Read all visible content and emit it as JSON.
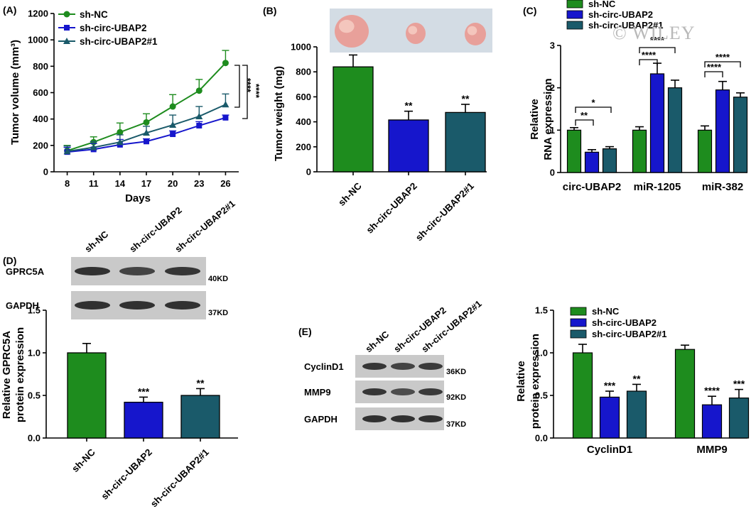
{
  "watermark": "© WILEY",
  "colors": {
    "sh_nc": "#1e8c1e",
    "sh_circ": "#1616cc",
    "sh_circ1": "#1a5a6a",
    "axis": "#000000"
  },
  "chart_data": [
    {
      "panel": "(A)",
      "type": "line",
      "xlabel": "Days",
      "ylabel": "Tumor volume (mm³)",
      "x": [
        8,
        11,
        14,
        17,
        20,
        23,
        26
      ],
      "xlim": [
        6.5,
        27.5
      ],
      "ylim": [
        0,
        1200
      ],
      "yticks": [
        0,
        200,
        400,
        600,
        800,
        1000,
        1200
      ],
      "legend_position": "top-left",
      "series": [
        {
          "name": "sh-NC",
          "marker": "circle",
          "values": [
            160,
            225,
            300,
            375,
            495,
            615,
            825
          ],
          "errors": [
            40,
            40,
            70,
            65,
            90,
            85,
            95
          ]
        },
        {
          "name": "sh-circ-UBAP2",
          "marker": "square",
          "values": [
            150,
            170,
            205,
            230,
            285,
            350,
            410
          ],
          "errors": [
            35,
            45,
            40,
            20,
            25,
            30,
            20
          ]
        },
        {
          "name": "sh-circ-UBAP2#1",
          "marker": "triangle",
          "values": [
            155,
            185,
            225,
            295,
            355,
            420,
            510
          ],
          "errors": [
            40,
            45,
            55,
            50,
            75,
            75,
            80
          ]
        }
      ],
      "annotations": [
        "****",
        "****"
      ]
    },
    {
      "panel": "(B)",
      "type": "bar",
      "ylabel": "Tumor weight (mg)",
      "categories": [
        "sh-NC",
        "sh-circ-UBAP2",
        "sh-circ-UBAP2#1"
      ],
      "values": [
        840,
        415,
        475
      ],
      "errors": [
        95,
        70,
        65
      ],
      "significance": [
        "",
        "**",
        "**"
      ],
      "ylim": [
        0,
        1000
      ],
      "yticks": [
        0,
        200,
        400,
        600,
        800,
        1000
      ]
    },
    {
      "panel": "(C)",
      "type": "bar",
      "ylabel": "Relative RNA expression",
      "categories": [
        "circ-UBAP2",
        "miR-1205",
        "miR-382"
      ],
      "series": [
        {
          "name": "sh-NC",
          "values": [
            1.0,
            1.0,
            1.0
          ],
          "errors": [
            0.06,
            0.08,
            0.1
          ]
        },
        {
          "name": "sh-circ-UBAP2",
          "values": [
            0.48,
            2.33,
            1.95
          ],
          "errors": [
            0.06,
            0.25,
            0.2
          ]
        },
        {
          "name": "sh-circ-UBAP2#1",
          "values": [
            0.56,
            2.0,
            1.78
          ],
          "errors": [
            0.05,
            0.18,
            0.1
          ]
        }
      ],
      "ylim": [
        0,
        3
      ],
      "yticks": [
        0,
        1,
        2,
        3
      ],
      "legend_position": "top",
      "annotations": [
        "**",
        "*",
        "****",
        "****",
        "****",
        "****"
      ]
    },
    {
      "panel": "(D)",
      "type": "bar",
      "ylabel": "Relative GPRC5A protein expression",
      "categories": [
        "sh-NC",
        "sh-circ-UBAP2",
        "sh-circ-UBAP2#1"
      ],
      "values": [
        1.0,
        0.42,
        0.5
      ],
      "errors": [
        0.11,
        0.06,
        0.08
      ],
      "significance": [
        "",
        "***",
        "**"
      ],
      "ylim": [
        0,
        1.5
      ],
      "yticks": [
        "0.0",
        "0.5",
        "1.0",
        "1.5"
      ],
      "blot": {
        "lanes": [
          "sh-NC",
          "sh-circ-UBAP2",
          "sh-circ-UBAP2#1"
        ],
        "rows": [
          {
            "label": "GPRC5A",
            "size": "40KD",
            "intensity": [
              0.9,
              0.7,
              0.85
            ]
          },
          {
            "label": "GAPDH",
            "size": "37KD",
            "intensity": [
              0.9,
              0.9,
              0.9
            ]
          }
        ]
      }
    },
    {
      "panel": "(E)",
      "type": "bar",
      "ylabel": "Relative protein expression",
      "categories": [
        "CyclinD1",
        "MMP9"
      ],
      "series": [
        {
          "name": "sh-NC",
          "values": [
            1.0,
            1.04
          ],
          "errors": [
            0.1,
            0.05
          ],
          "significance": [
            "",
            ""
          ]
        },
        {
          "name": "sh-circ-UBAP2",
          "values": [
            0.48,
            0.39
          ],
          "errors": [
            0.07,
            0.1
          ],
          "significance": [
            "***",
            "****"
          ]
        },
        {
          "name": "sh-circ-UBAP2#1",
          "values": [
            0.55,
            0.47
          ],
          "errors": [
            0.08,
            0.1
          ],
          "significance": [
            "**",
            "***"
          ]
        }
      ],
      "ylim": [
        0,
        1.5
      ],
      "yticks": [
        "0.0",
        "0.5",
        "1.0",
        "1.5"
      ],
      "legend_position": "top-right",
      "blot": {
        "lanes": [
          "sh-NC",
          "sh-circ-UBAP2",
          "sh-circ-UBAP2#1"
        ],
        "rows": [
          {
            "label": "CyclinD1",
            "size": "36KD",
            "intensity": [
              0.85,
              0.7,
              0.8
            ]
          },
          {
            "label": "MMP9",
            "size": "92KD",
            "intensity": [
              0.85,
              0.6,
              0.8
            ]
          },
          {
            "label": "GAPDH",
            "size": "37KD",
            "intensity": [
              0.9,
              0.9,
              0.9
            ]
          }
        ]
      }
    }
  ]
}
